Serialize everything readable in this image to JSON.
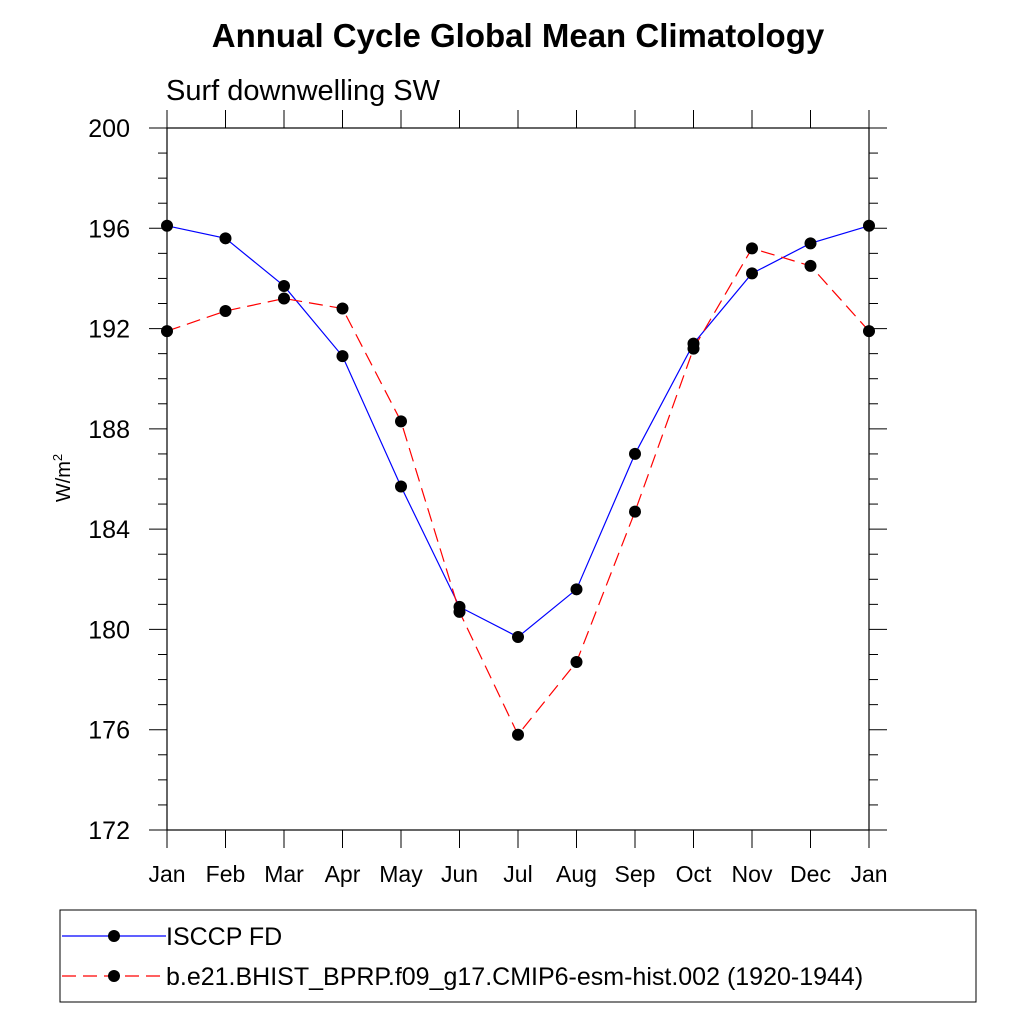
{
  "chart_data": {
    "type": "line",
    "title": "Annual Cycle Global Mean Climatology",
    "subtitle": "Surf downwelling SW",
    "ylabel": "W/m",
    "ylabel_superscript": "2",
    "xlabel": "",
    "categories": [
      "Jan",
      "Feb",
      "Mar",
      "Apr",
      "May",
      "Jun",
      "Jul",
      "Aug",
      "Sep",
      "Oct",
      "Nov",
      "Dec",
      "Jan"
    ],
    "ylim": [
      172,
      200
    ],
    "yticks": [
      172,
      176,
      180,
      184,
      188,
      192,
      196,
      200
    ],
    "series": [
      {
        "name": "ISCCP FD",
        "color": "#0000ff",
        "dash": "solid",
        "values": [
          196.1,
          195.6,
          193.7,
          190.9,
          185.7,
          180.9,
          179.7,
          181.6,
          187.0,
          191.4,
          194.2,
          195.4,
          196.1
        ]
      },
      {
        "name": "b.e21.BHIST_BPRP.f09_g17.CMIP6-esm-hist.002 (1920-1944)",
        "color": "#ff0000",
        "dash": "dashed",
        "values": [
          191.9,
          192.7,
          193.2,
          192.8,
          188.3,
          180.7,
          175.8,
          178.7,
          184.7,
          191.2,
          195.2,
          194.5,
          191.9
        ]
      }
    ],
    "grid": false,
    "legend_position": "bottom",
    "marker": "filled-circle"
  }
}
